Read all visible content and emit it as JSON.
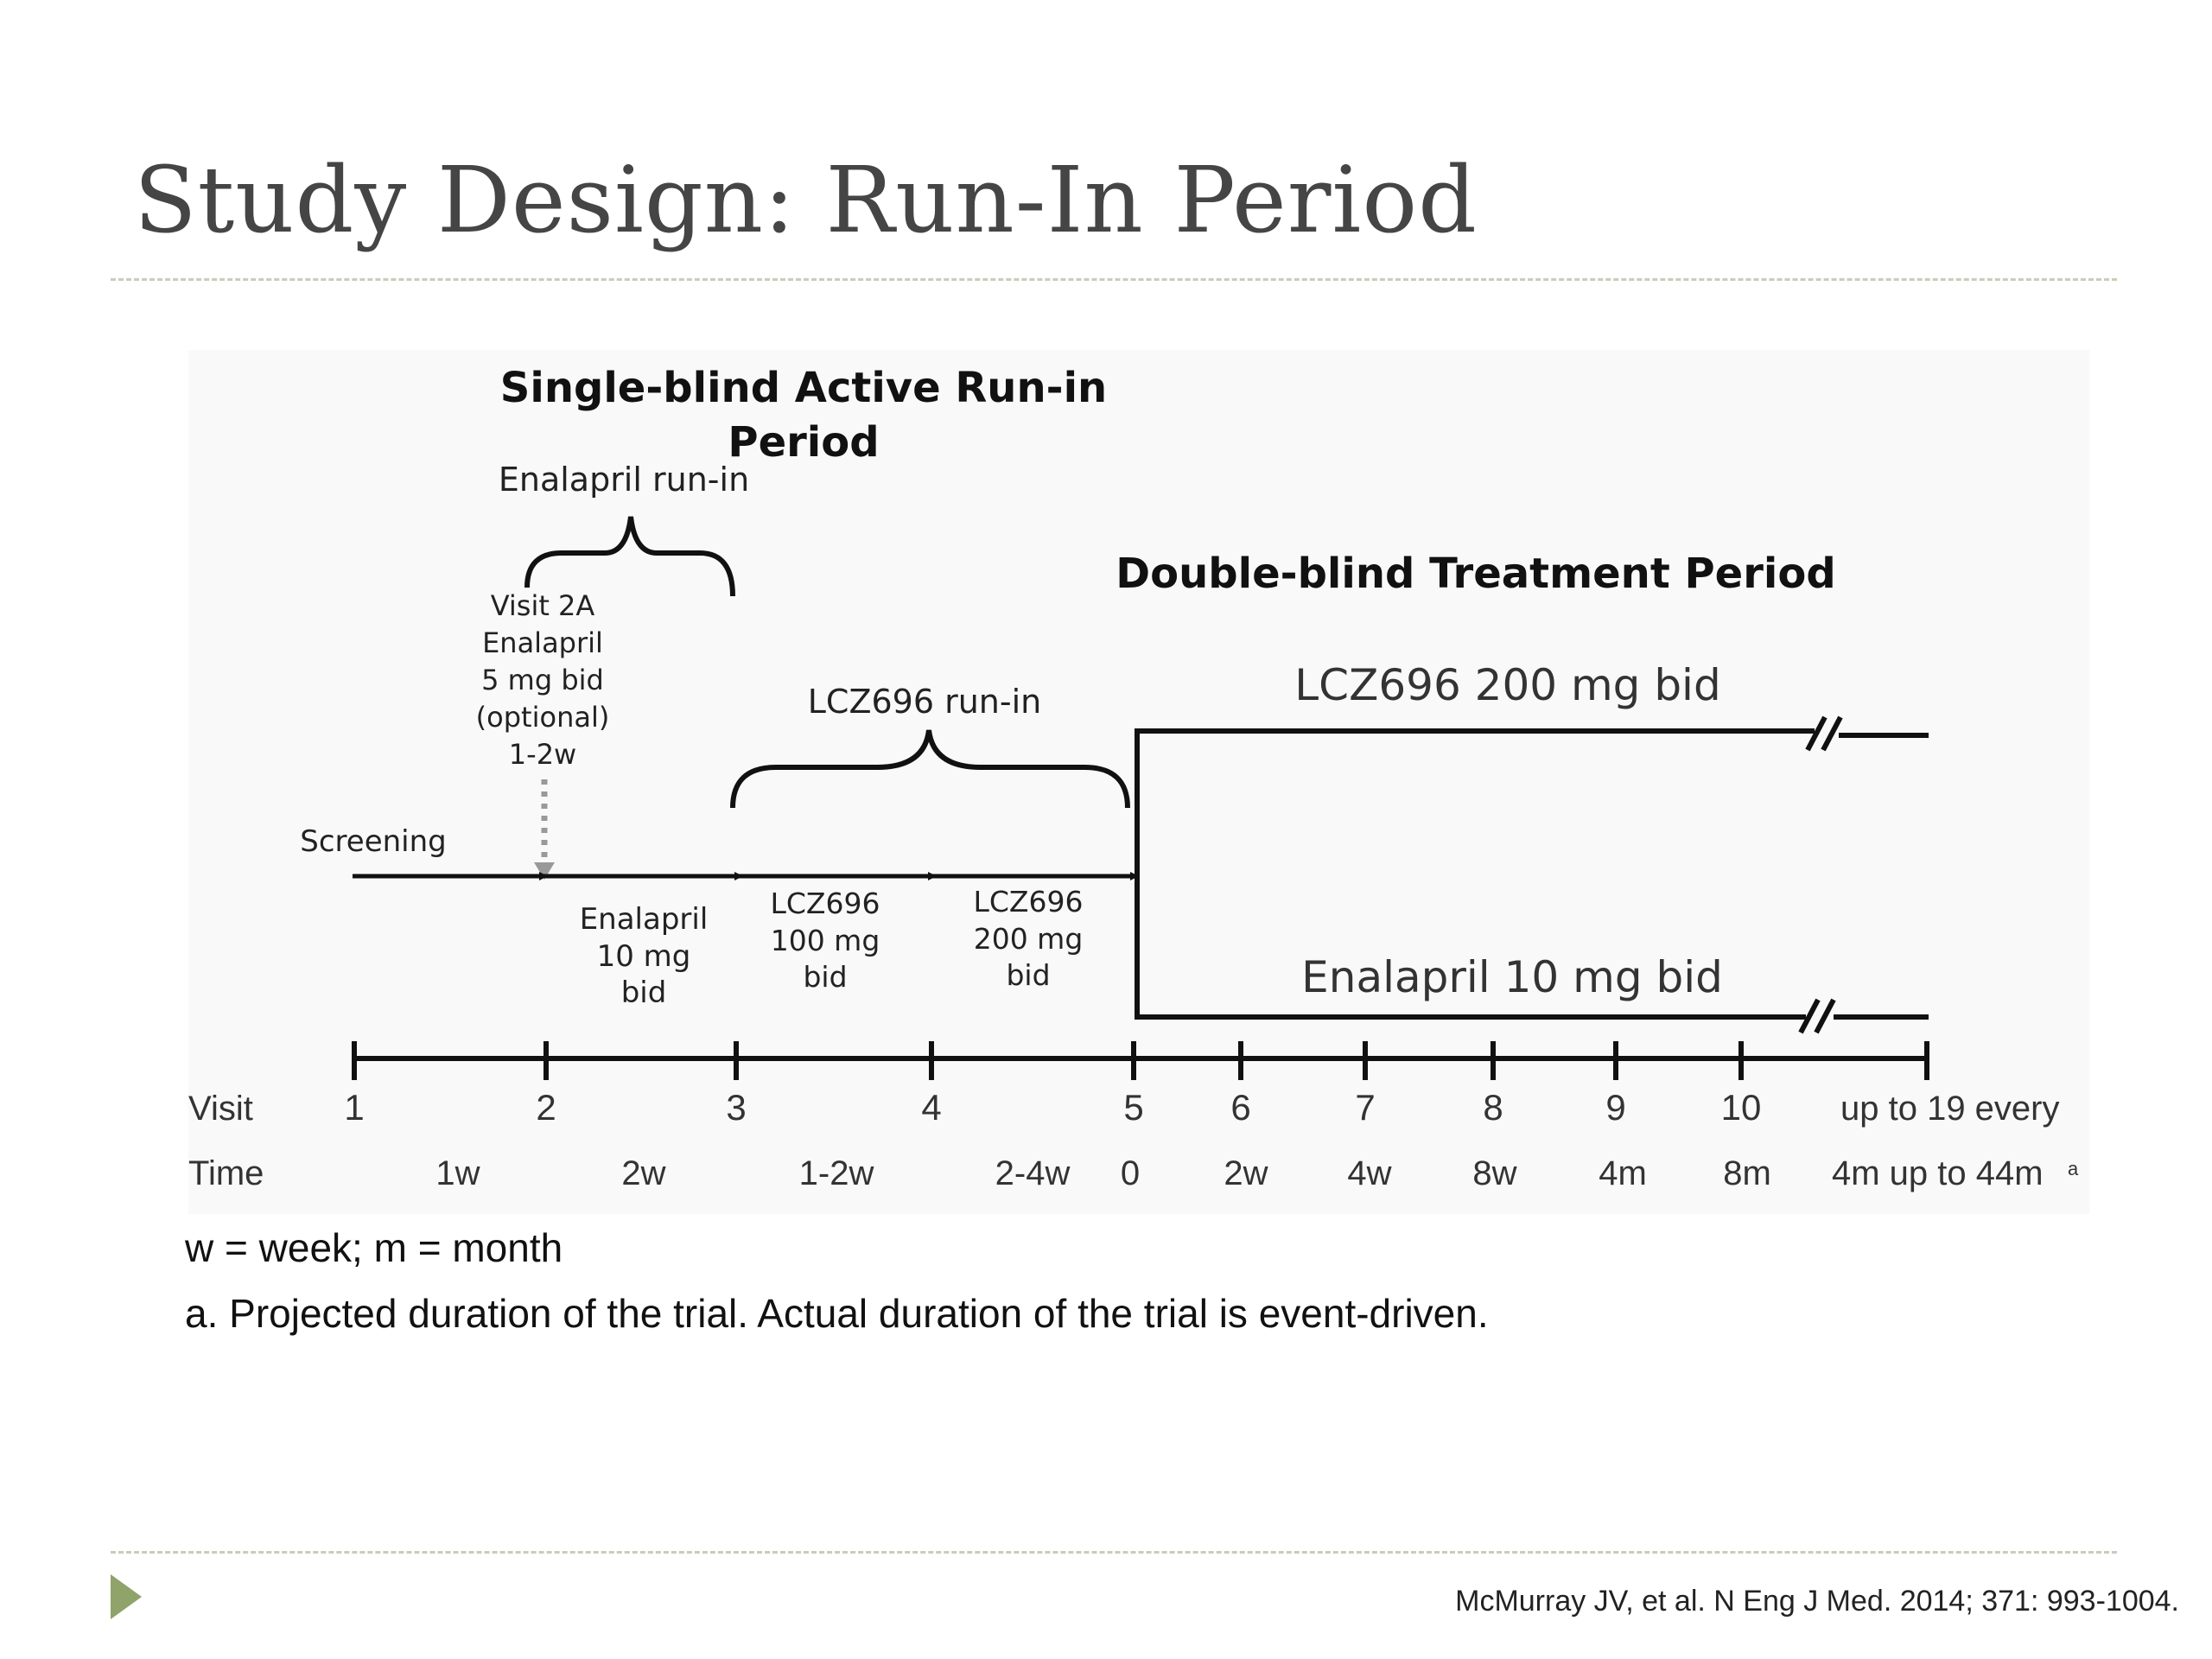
{
  "slide": {
    "title": "Study Design: Run-In Period",
    "citation": "McMurray JV, et al. N Eng J Med. 2014; 371: 993-1004."
  },
  "diagram": {
    "headings": {
      "single_blind_line1": "Single-blind Active Run-in",
      "single_blind_line2": "Period",
      "double_blind": "Double-blind Treatment Period"
    },
    "braces": {
      "enalapril_runin": "Enalapril run-in",
      "lcz_runin": "LCZ696 run-in"
    },
    "visit2a": [
      "Visit 2A",
      "Enalapril",
      "5 mg bid",
      "(optional)",
      "1-2w"
    ],
    "screening": "Screening",
    "phases": {
      "enalapril_10": [
        "Enalapril",
        "10 mg",
        "bid"
      ],
      "lcz_100": [
        "LCZ696",
        "100 mg",
        "bid"
      ],
      "lcz_200": [
        "LCZ696",
        "200 mg",
        "bid"
      ]
    },
    "arms": {
      "upper": "LCZ696 200 mg bid",
      "lower": "Enalapril 10 mg bid"
    },
    "row_labels": {
      "visit": "Visit",
      "time": "Time"
    },
    "visits": [
      "1",
      "2",
      "3",
      "4",
      "5",
      "6",
      "7",
      "8",
      "9",
      "10",
      "up to 19 every"
    ],
    "times": [
      "1w",
      "2w",
      "1-2w",
      "2-4w",
      "0",
      "2w",
      "4w",
      "8w",
      "4m",
      "8m",
      "4m up to 44m"
    ],
    "time_footnote_mark": "a"
  },
  "notes": {
    "abbreviations": "w = week; m = month",
    "footnote": "a. Projected duration of the trial. Actual duration of the trial is event-driven."
  },
  "colors": {
    "title": "#454545",
    "rule": "#c8cdb8",
    "bullet": "#8fa36a",
    "line": "#111111"
  }
}
